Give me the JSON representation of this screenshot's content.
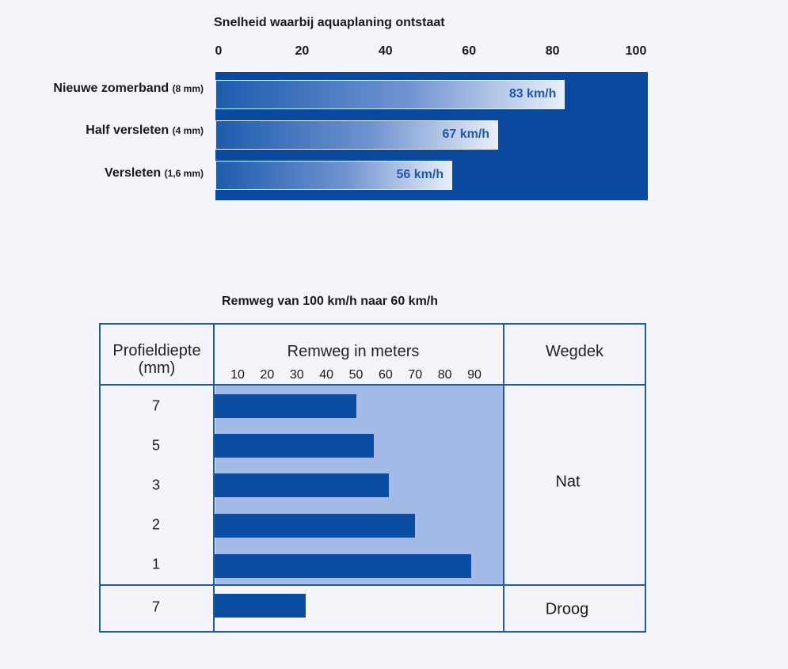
{
  "chart_data": [
    {
      "type": "bar",
      "orientation": "horizontal",
      "title": "Snelheid waarbij aquaplaning ontstaat",
      "xlim": [
        0,
        100
      ],
      "ticks": [
        "0",
        "20",
        "40",
        "60",
        "80",
        "100"
      ],
      "categories": [
        {
          "label": "Nieuwe zomerband",
          "sub": "(8 mm)"
        },
        {
          "label": "Half versleten",
          "sub": "(4 mm)"
        },
        {
          "label": "Versleten",
          "sub": "(1,6 mm)"
        }
      ],
      "values": [
        83,
        67,
        56
      ],
      "value_labels": [
        "83 km/h",
        "67 km/h",
        "56 km/h"
      ],
      "colors": {
        "panel": "#0a4a9e",
        "bar_start": "#1d5cae",
        "bar_end": "#e8eef9",
        "label": "#1e5aa8"
      }
    },
    {
      "type": "bar",
      "orientation": "horizontal",
      "title": "Remweg van 100 km/h naar 60 km/h",
      "xlim": [
        0,
        97
      ],
      "col_headers": {
        "depth": "Profieldiepte (mm)",
        "distance": "Remweg in meters",
        "surface": "Wegdek"
      },
      "ticks": [
        "10",
        "20",
        "30",
        "40",
        "50",
        "60",
        "70",
        "80",
        "90"
      ],
      "rows": [
        {
          "depth": "7",
          "value": 50,
          "surface": "Nat"
        },
        {
          "depth": "5",
          "value": 56,
          "surface": "Nat"
        },
        {
          "depth": "3",
          "value": 61,
          "surface": "Nat"
        },
        {
          "depth": "2",
          "value": 70,
          "surface": "Nat"
        },
        {
          "depth": "1",
          "value": 89,
          "surface": "Nat"
        },
        {
          "depth": "7",
          "value": 33,
          "surface": "Droog"
        }
      ],
      "surface_labels": [
        "Nat",
        "Droog"
      ],
      "colors": {
        "frame": "#1e5aa8",
        "shade": "#a3b9e6",
        "bar": "#0b4da0"
      }
    }
  ]
}
